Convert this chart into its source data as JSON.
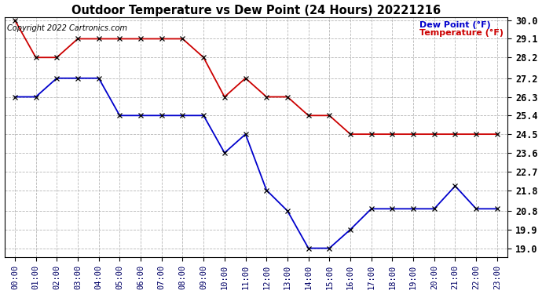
{
  "title": "Outdoor Temperature vs Dew Point (24 Hours) 20221216",
  "copyright_text": "Copyright 2022 Cartronics.com",
  "legend_dew": "Dew Point (°F)",
  "legend_temp": "Temperature (°F)",
  "hours": [
    0,
    1,
    2,
    3,
    4,
    5,
    6,
    7,
    8,
    9,
    10,
    11,
    12,
    13,
    14,
    15,
    16,
    17,
    18,
    19,
    20,
    21,
    22,
    23
  ],
  "temperature": [
    30.0,
    28.2,
    28.2,
    29.1,
    29.1,
    29.1,
    29.1,
    29.1,
    29.1,
    28.2,
    26.3,
    27.2,
    26.3,
    26.3,
    25.4,
    25.4,
    24.5,
    24.5,
    24.5,
    24.5,
    24.5,
    24.5,
    24.5,
    24.5
  ],
  "dew_point": [
    26.3,
    26.3,
    27.2,
    27.2,
    27.2,
    25.4,
    25.4,
    25.4,
    25.4,
    25.4,
    23.6,
    24.5,
    21.8,
    20.8,
    19.0,
    19.0,
    19.9,
    20.9,
    20.9,
    20.9,
    20.9,
    22.0,
    20.9,
    20.9
  ],
  "temp_color": "#cc0000",
  "dew_color": "#0000cc",
  "marker_color": "#000000",
  "background_color": "#ffffff",
  "grid_color": "#aaaaaa",
  "ylim_min": 19.0,
  "ylim_max": 30.0,
  "yticks": [
    30.0,
    29.1,
    28.2,
    27.2,
    26.3,
    25.4,
    24.5,
    23.6,
    22.7,
    21.8,
    20.8,
    19.9,
    19.0
  ]
}
